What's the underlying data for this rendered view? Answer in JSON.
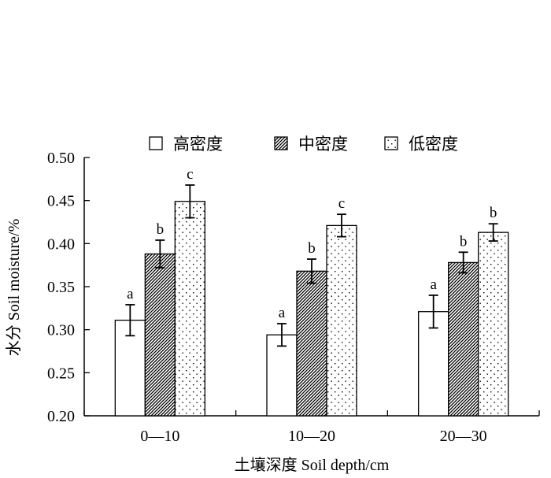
{
  "chart_data": {
    "type": "bar",
    "xlabel": "土壤深度  Soil depth/cm",
    "ylabel": "水分 Soil moisture/%",
    "ylim": [
      0.2,
      0.5
    ],
    "yticks": [
      "0.20",
      "0.25",
      "0.30",
      "0.35",
      "0.40",
      "0.45",
      "0.50"
    ],
    "categories": [
      "0—10",
      "10—20",
      "20—30"
    ],
    "legend_position": "top",
    "grid": false,
    "series": [
      {
        "name": "高密度",
        "pattern": "none",
        "values": [
          0.311,
          0.294,
          0.321
        ],
        "errors": [
          0.018,
          0.013,
          0.019
        ],
        "labels": [
          "a",
          "a",
          "a"
        ]
      },
      {
        "name": "中密度",
        "pattern": "diagonal-hatch",
        "values": [
          0.388,
          0.368,
          0.378
        ],
        "errors": [
          0.016,
          0.014,
          0.012
        ],
        "labels": [
          "b",
          "b",
          "b"
        ]
      },
      {
        "name": "低密度",
        "pattern": "dots",
        "values": [
          0.449,
          0.421,
          0.413
        ],
        "errors": [
          0.019,
          0.013,
          0.01
        ],
        "labels": [
          "c",
          "c",
          "b"
        ]
      }
    ]
  }
}
